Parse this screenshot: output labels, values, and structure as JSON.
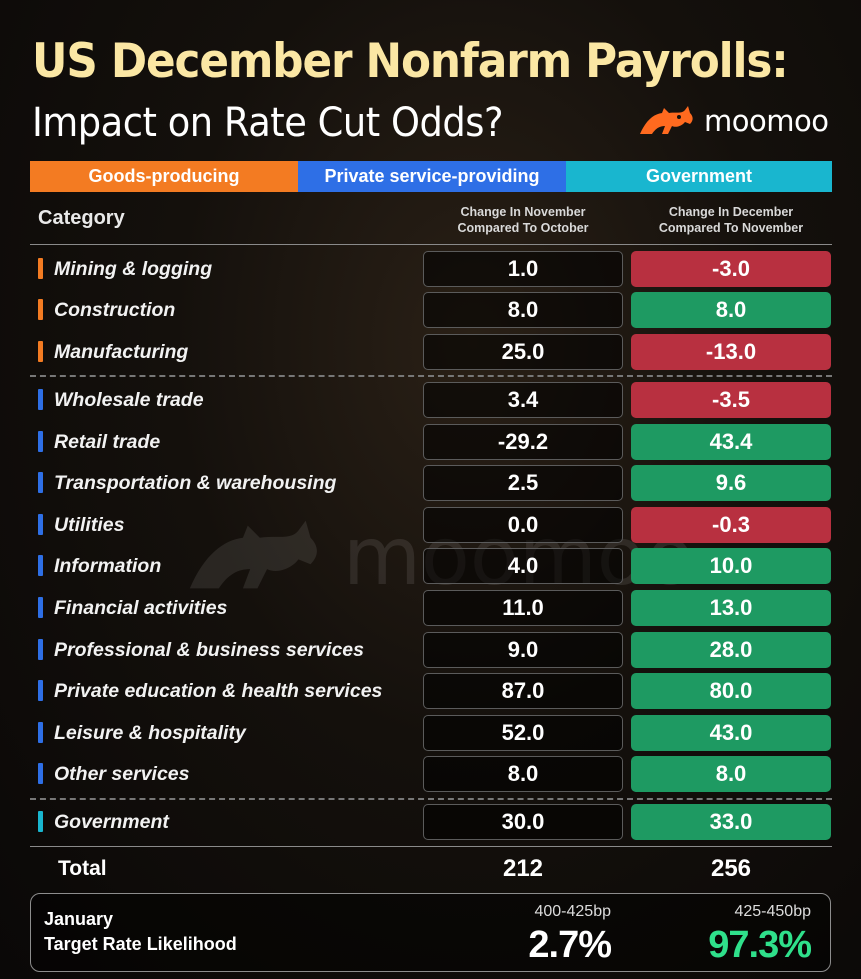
{
  "header": {
    "title": "US December Nonfarm Payrolls:",
    "subtitle": "Impact on Rate Cut Odds?",
    "brand": "moomoo"
  },
  "watermark": "moomoo",
  "legend": {
    "goods": "Goods-producing",
    "private": "Private service-providing",
    "government": "Government"
  },
  "colors": {
    "goods": "#f37b22",
    "private": "#2e6fe6",
    "government": "#19b6cf",
    "positive": "#1e9a62",
    "negative": "#b83040",
    "title": "#fbe7a4",
    "highlight": "#2fe08b"
  },
  "table": {
    "category_header": "Category",
    "col1_header": [
      "Change In November",
      "Compared To October"
    ],
    "col2_header": [
      "Change In December",
      "Compared To November"
    ],
    "rows": [
      {
        "label": "Mining & logging",
        "group": "goods",
        "nov": "1.0",
        "dec": "-3.0"
      },
      {
        "label": "Construction",
        "group": "goods",
        "nov": "8.0",
        "dec": "8.0"
      },
      {
        "label": "Manufacturing",
        "group": "goods",
        "nov": "25.0",
        "dec": "-13.0"
      },
      {
        "label": "Wholesale trade",
        "group": "private",
        "nov": "3.4",
        "dec": "-3.5"
      },
      {
        "label": "Retail trade",
        "group": "private",
        "nov": "-29.2",
        "dec": "43.4"
      },
      {
        "label": "Transportation & warehousing",
        "group": "private",
        "nov": "2.5",
        "dec": "9.6"
      },
      {
        "label": "Utilities",
        "group": "private",
        "nov": "0.0",
        "dec": "-0.3"
      },
      {
        "label": "Information",
        "group": "private",
        "nov": "4.0",
        "dec": "10.0"
      },
      {
        "label": "Financial activities",
        "group": "private",
        "nov": "11.0",
        "dec": "13.0"
      },
      {
        "label": "Professional & business services",
        "group": "private",
        "nov": "9.0",
        "dec": "28.0"
      },
      {
        "label": "Private education & health services",
        "group": "private",
        "nov": "87.0",
        "dec": "80.0"
      },
      {
        "label": "Leisure & hospitality",
        "group": "private",
        "nov": "52.0",
        "dec": "43.0"
      },
      {
        "label": "Other services",
        "group": "private",
        "nov": "8.0",
        "dec": "8.0"
      },
      {
        "label": "Government",
        "group": "government",
        "nov": "30.0",
        "dec": "33.0"
      }
    ],
    "total": {
      "label": "Total",
      "nov": "212",
      "dec": "256"
    }
  },
  "likelihood": {
    "label_line1": "January",
    "label_line2": "Target Rate Likelihood",
    "option1": {
      "range": "400-425bp",
      "value": "2.7%"
    },
    "option2": {
      "range": "425-450bp",
      "value": "97.3%"
    }
  }
}
